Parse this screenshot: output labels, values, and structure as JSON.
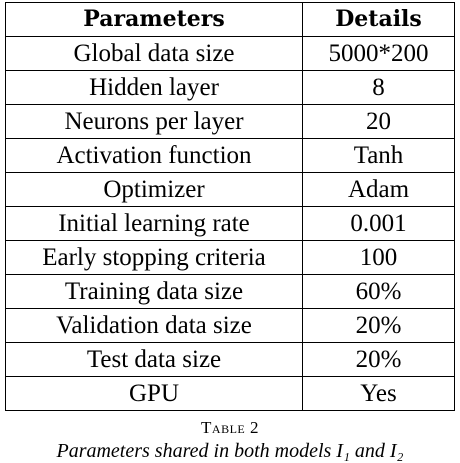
{
  "table": {
    "header": [
      "Parameters",
      "Details"
    ],
    "rows": [
      [
        "Global data size",
        "5000*200"
      ],
      [
        "Hidden layer",
        "8"
      ],
      [
        "Neurons per layer",
        "20"
      ],
      [
        "Activation function",
        "Tanh"
      ],
      [
        "Optimizer",
        "Adam"
      ],
      [
        "Initial learning rate",
        "0.001"
      ],
      [
        "Early stopping criteria",
        "100"
      ],
      [
        "Training data size",
        "60%"
      ],
      [
        "Validation data size",
        "20%"
      ],
      [
        "Test data size",
        "20%"
      ],
      [
        "GPU",
        "Yes"
      ]
    ],
    "label": "Table 2",
    "caption": "Parameters shared in both models I₁ and I₂"
  }
}
